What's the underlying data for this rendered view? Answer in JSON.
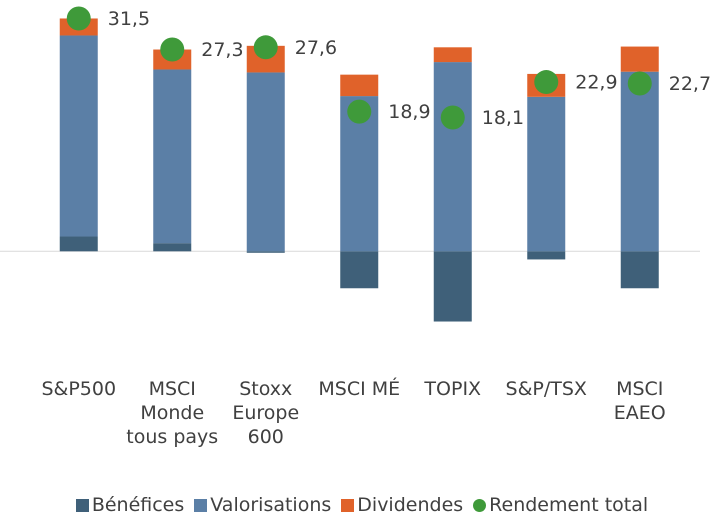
{
  "chart_data": {
    "type": "bar",
    "stacked": true,
    "categories": [
      "S&P500",
      "MSCI Monde tous pays",
      "Stoxx Europe 600",
      "MSCI MÉ",
      "TOPIX",
      "S&P/TSX",
      "MSCI EAEO"
    ],
    "series": [
      {
        "name": "Bénéfices",
        "color": "#3f6079",
        "values": [
          2.0,
          1.1,
          -0.2,
          -5.0,
          -9.5,
          -1.1,
          -5.0
        ]
      },
      {
        "name": "Valorisations",
        "color": "#5b7fa6",
        "values": [
          27.2,
          23.5,
          24.2,
          21.0,
          25.6,
          20.9,
          24.3
        ]
      },
      {
        "name": "Dividendes",
        "color": "#e0622a",
        "values": [
          2.3,
          2.7,
          3.6,
          2.9,
          2.0,
          3.1,
          3.4
        ]
      },
      {
        "name": "Rendement total",
        "color": "#3f9a3a",
        "type": "scatter",
        "values": [
          31.5,
          27.3,
          27.6,
          18.9,
          18.1,
          22.9,
          22.7
        ],
        "value_labels": [
          "31,5",
          "27,3",
          "27,6",
          "18,9",
          "18,1",
          "22,9",
          "22,7"
        ]
      }
    ],
    "ylim": [
      -12,
      34
    ],
    "legend": "bottom"
  }
}
